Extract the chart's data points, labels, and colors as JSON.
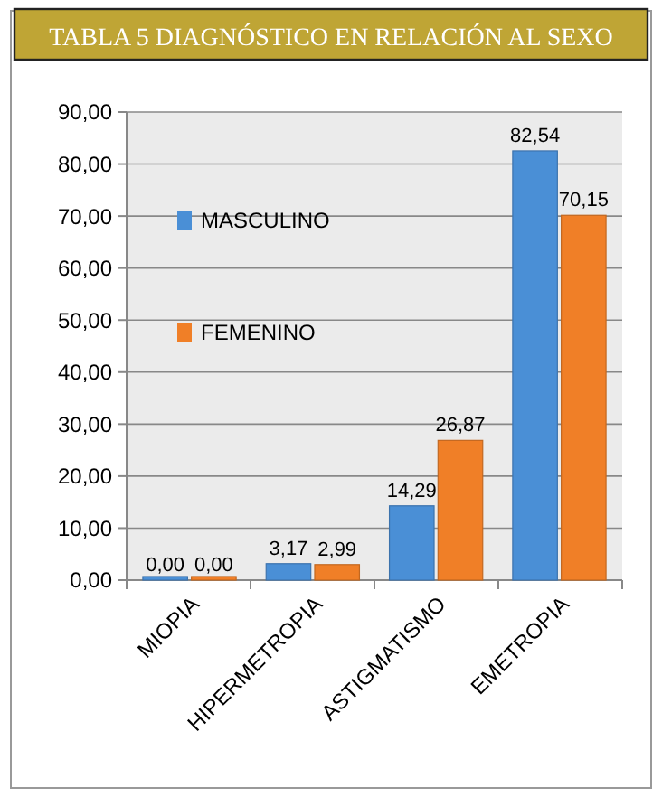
{
  "chart_data": {
    "type": "bar",
    "title": "TABLA 5 DIAGNÓSTICO EN RELACIÓN AL SEXO",
    "categories": [
      "MIOPIA",
      "HIPERMETROPIA",
      "ASTIGMATISMO",
      "EMETROPIA"
    ],
    "series": [
      {
        "name": "MASCULINO",
        "color": "#4a8fd6",
        "values": [
          0.0,
          3.17,
          14.29,
          82.54
        ],
        "value_labels": [
          "0,00",
          "3,17",
          "14,29",
          "82,54"
        ]
      },
      {
        "name": "FEMENINO",
        "color": "#f07f27",
        "values": [
          0.0,
          2.99,
          26.87,
          70.15
        ],
        "value_labels": [
          "0,00",
          "2,99",
          "26,87",
          "70,15"
        ]
      }
    ],
    "ylim": [
      0,
      90
    ],
    "yticks": [
      {
        "value": 0,
        "label": "0,00"
      },
      {
        "value": 10,
        "label": "10,00"
      },
      {
        "value": 20,
        "label": "20,00"
      },
      {
        "value": 30,
        "label": "30,00"
      },
      {
        "value": 40,
        "label": "40,00"
      },
      {
        "value": 50,
        "label": "50,00"
      },
      {
        "value": 60,
        "label": "60,00"
      },
      {
        "value": 70,
        "label": "70,00"
      },
      {
        "value": 80,
        "label": "80,00"
      },
      {
        "value": 90,
        "label": "90,00"
      }
    ],
    "grid": "y",
    "legend": "left"
  }
}
